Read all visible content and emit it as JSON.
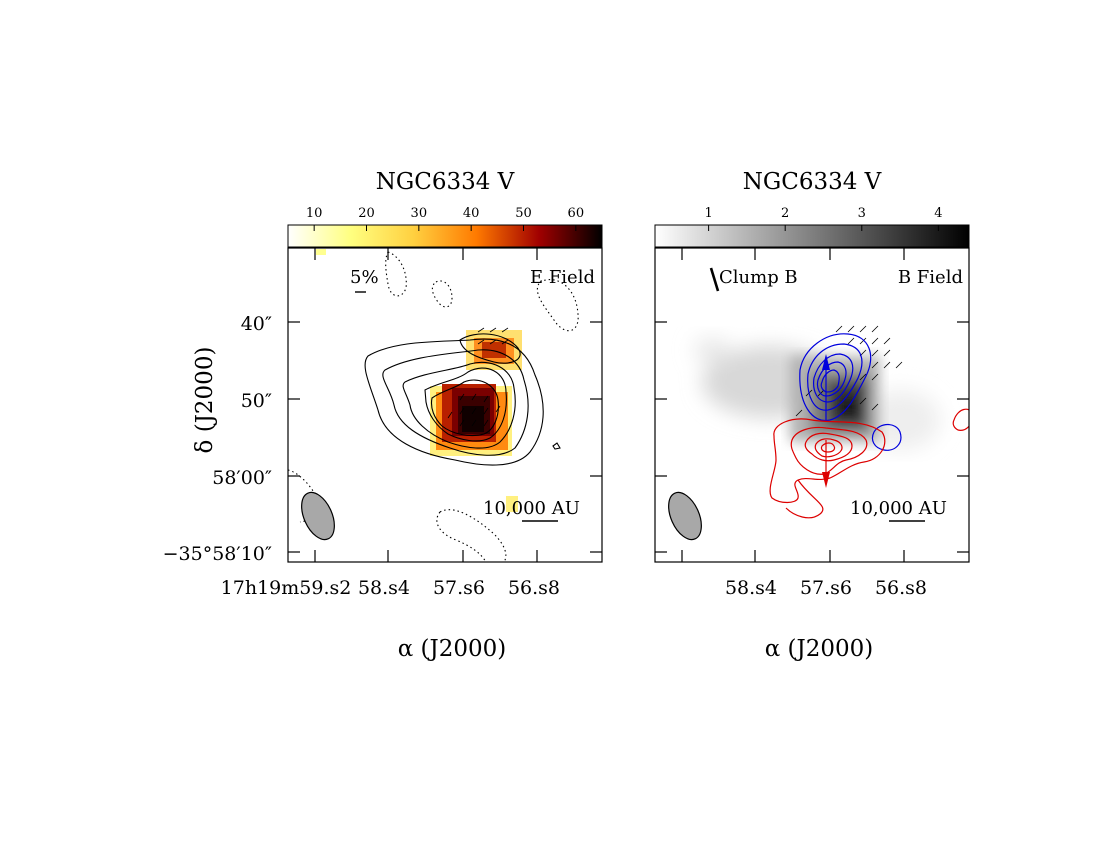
{
  "chart_data": [
    {
      "type": "heatmap",
      "title": "NGC6334  V",
      "colorbar": {
        "ticks": [
          "10",
          "20",
          "30",
          "40",
          "50",
          "60"
        ],
        "range": [
          5,
          65
        ],
        "colormap": "hot"
      },
      "ylabel": "δ  (J2000)",
      "xlabel": "α  (J2000)",
      "y_ticks": [
        "40″",
        "50″",
        "58′00″",
        "−35°58′10″"
      ],
      "x_ticks": [
        "17h19m59.s2",
        "58.s4",
        "57.s6",
        "56.s8"
      ],
      "annotations": [
        "5%",
        "E Field",
        "10,000  AU"
      ],
      "grid": false
    },
    {
      "type": "heatmap",
      "title": "NGC6334  V",
      "colorbar": {
        "ticks": [
          "1",
          "2",
          "3",
          "4"
        ],
        "range": [
          0.3,
          4.4
        ],
        "colormap": "gray"
      },
      "xlabel": "α  (J2000)",
      "x_ticks": [
        "58.s4",
        "57.s6",
        "56.s8"
      ],
      "annotations": [
        "Clump  B",
        "B  Field",
        "10,000  AU"
      ],
      "outflow_colors": {
        "blueshifted": "#0000dd",
        "redshifted": "#dd0000"
      },
      "grid": false
    }
  ],
  "text": {
    "p1_title": "NGC6334  V",
    "p2_title": "NGC6334  V",
    "p1_cb": [
      "10",
      "20",
      "30",
      "40",
      "50",
      "60"
    ],
    "p2_cb": [
      "1",
      "2",
      "3",
      "4"
    ],
    "p1_yt_40": "40″",
    "p1_yt_50": "50″",
    "p1_yt_00": "58′00″",
    "p1_yt_10": "−35°58′10″",
    "p1_xt_0": "17h19m59.s2",
    "p1_xt_1": "58.s4",
    "p1_xt_2": "57.s6",
    "p1_xt_3": "56.s8",
    "p2_xt_1": "58.s4",
    "p2_xt_2": "57.s6",
    "p2_xt_3": "56.s8",
    "p1_pct": "5%",
    "p1_field": "E Field",
    "p2_clump": "Clump  B",
    "p2_field": "B  Field",
    "scale": "10,000  AU",
    "ylabel": "δ  (J2000)",
    "xlabel1": "α  (J2000)",
    "xlabel2": "α  (J2000)"
  }
}
